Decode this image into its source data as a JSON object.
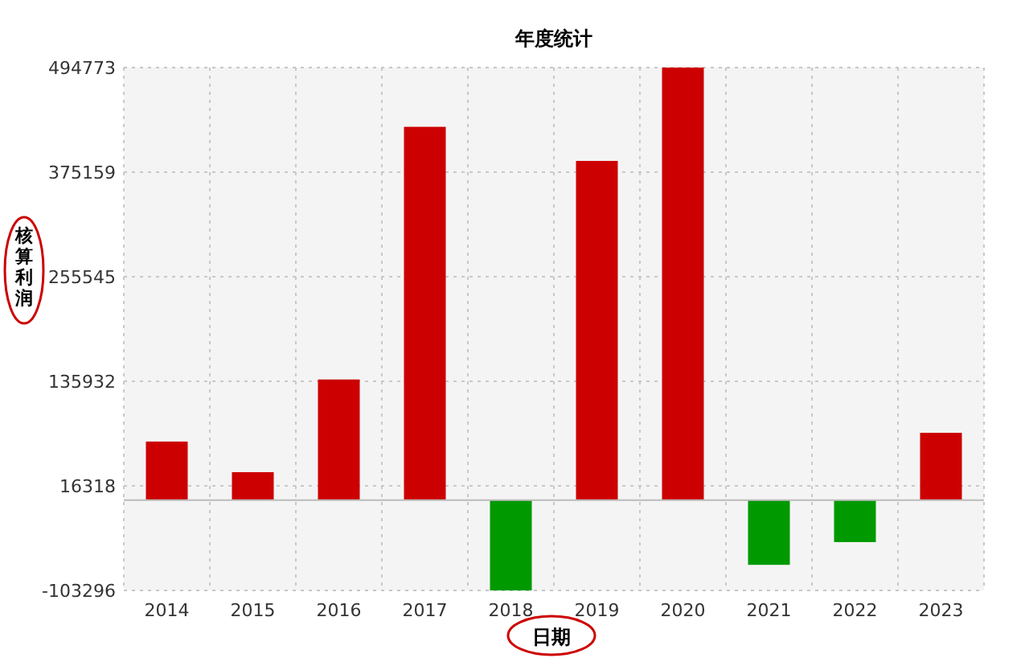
{
  "chart_data": {
    "type": "bar",
    "title": "年度统计",
    "xlabel": "日期",
    "ylabel": "核算利润",
    "categories": [
      "2014",
      "2015",
      "2016",
      "2017",
      "2018",
      "2019",
      "2020",
      "2021",
      "2022",
      "2023"
    ],
    "values": [
      67000,
      32000,
      138000,
      427000,
      -103296,
      388000,
      494773,
      -74000,
      -48000,
      77000
    ],
    "colors": [
      "#cc0000",
      "#cc0000",
      "#cc0000",
      "#cc0000",
      "#009900",
      "#cc0000",
      "#cc0000",
      "#009900",
      "#009900",
      "#cc0000"
    ],
    "ylim": [
      -103296,
      494773
    ],
    "yticks": [
      -103296,
      16318,
      135932,
      255545,
      375159,
      494773
    ],
    "grid": true
  }
}
